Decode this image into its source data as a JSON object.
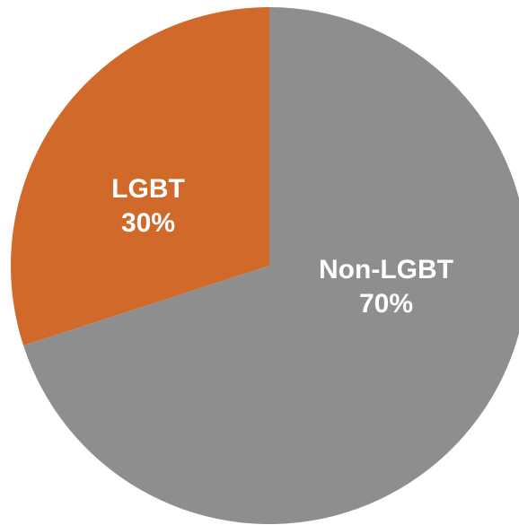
{
  "chart_data": {
    "type": "pie",
    "categories": [
      "LGBT",
      "Non-LGBT"
    ],
    "values": [
      30,
      70
    ],
    "value_labels": [
      "30%",
      "70%"
    ],
    "colors": [
      "#d0692a",
      "#8e8e8e"
    ]
  }
}
